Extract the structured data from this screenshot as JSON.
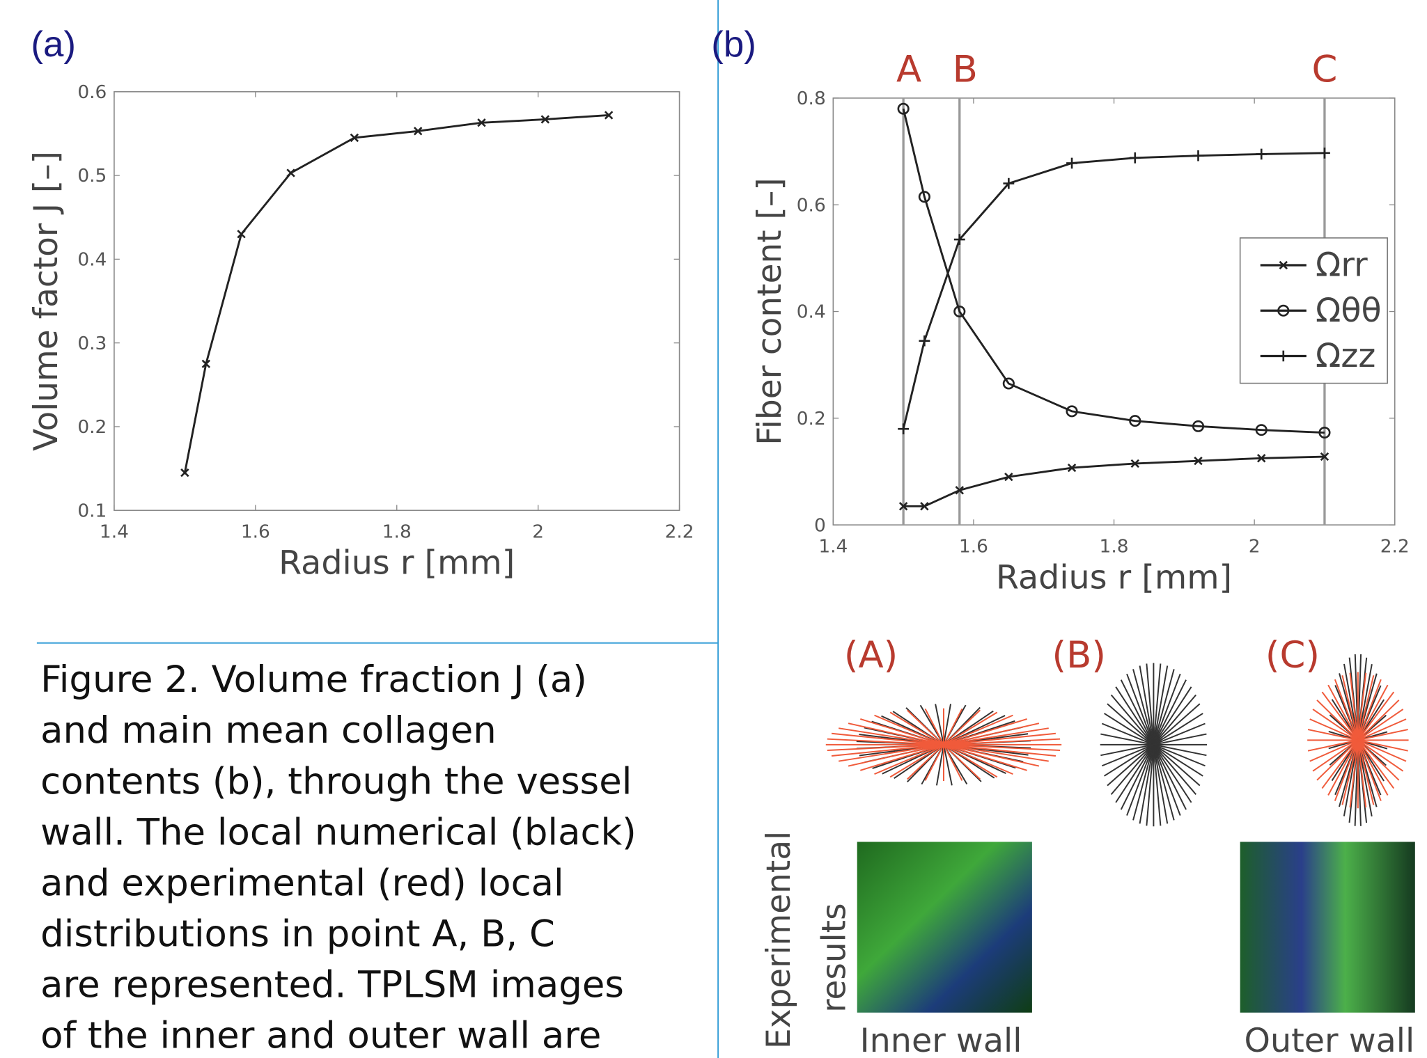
{
  "chart_data": [
    {
      "type": "line",
      "panel_label": "(a)",
      "xlabel": "Radius r [mm]",
      "ylabel": "Volume factor J [–]",
      "x": [
        1.5,
        1.53,
        1.58,
        1.65,
        1.74,
        1.83,
        1.92,
        2.01,
        2.1
      ],
      "series": [
        {
          "color": "#222222",
          "marker": "x",
          "values": [
            0.145,
            0.275,
            0.43,
            0.503,
            0.545,
            0.553,
            0.563,
            0.567,
            0.572
          ]
        }
      ],
      "xlim": [
        1.4,
        2.2
      ],
      "xticks": [
        1.4,
        1.6,
        1.8,
        2,
        2.2
      ],
      "ylim": [
        0.1,
        0.6
      ],
      "yticks": [
        0.1,
        0.2,
        0.3,
        0.4,
        0.5,
        0.6
      ]
    },
    {
      "type": "line",
      "panel_label": "(b)",
      "xlabel": "Radius r [mm]",
      "ylabel": "Fiber content [–]",
      "x": [
        1.5,
        1.53,
        1.58,
        1.65,
        1.74,
        1.83,
        1.92,
        2.01,
        2.1
      ],
      "series": [
        {
          "name": "Ωrr",
          "color": "#222222",
          "marker": "x",
          "values": [
            0.035,
            0.035,
            0.065,
            0.09,
            0.107,
            0.115,
            0.12,
            0.125,
            0.128
          ]
        },
        {
          "name": "Ωθθ",
          "color": "#222222",
          "marker": "o",
          "values": [
            0.78,
            0.615,
            0.4,
            0.265,
            0.213,
            0.195,
            0.185,
            0.178,
            0.173
          ]
        },
        {
          "name": "Ωzz",
          "color": "#222222",
          "marker": "+",
          "values": [
            0.18,
            0.345,
            0.535,
            0.64,
            0.678,
            0.688,
            0.692,
            0.695,
            0.697
          ]
        }
      ],
      "reference_lines": [
        {
          "label": "A",
          "x": 1.5
        },
        {
          "label": "B",
          "x": 1.58
        },
        {
          "label": "C",
          "x": 2.1
        }
      ],
      "xlim": [
        1.4,
        2.2
      ],
      "xticks": [
        1.4,
        1.6,
        1.8,
        2,
        2.2
      ],
      "ylim": [
        0,
        0.8
      ],
      "yticks": [
        0,
        0.2,
        0.4,
        0.6,
        0.8
      ],
      "legend": "right"
    }
  ],
  "distributions": {
    "labels": [
      "(A)",
      "(B)",
      "(C)"
    ],
    "side_label": [
      "Experimental",
      "results"
    ],
    "images": [
      "Inner wall",
      "Outer wall"
    ]
  },
  "caption": [
    "Figure 2.  Volume fraction J (a)",
    "and  main mean collagen",
    "contents (b), through the vessel",
    "wall. The local numerical (black)",
    "and experimental (red) local",
    "distributions in point  A, B, C",
    "are represented.  TPLSM images",
    "of the inner and outer wall  are"
  ]
}
